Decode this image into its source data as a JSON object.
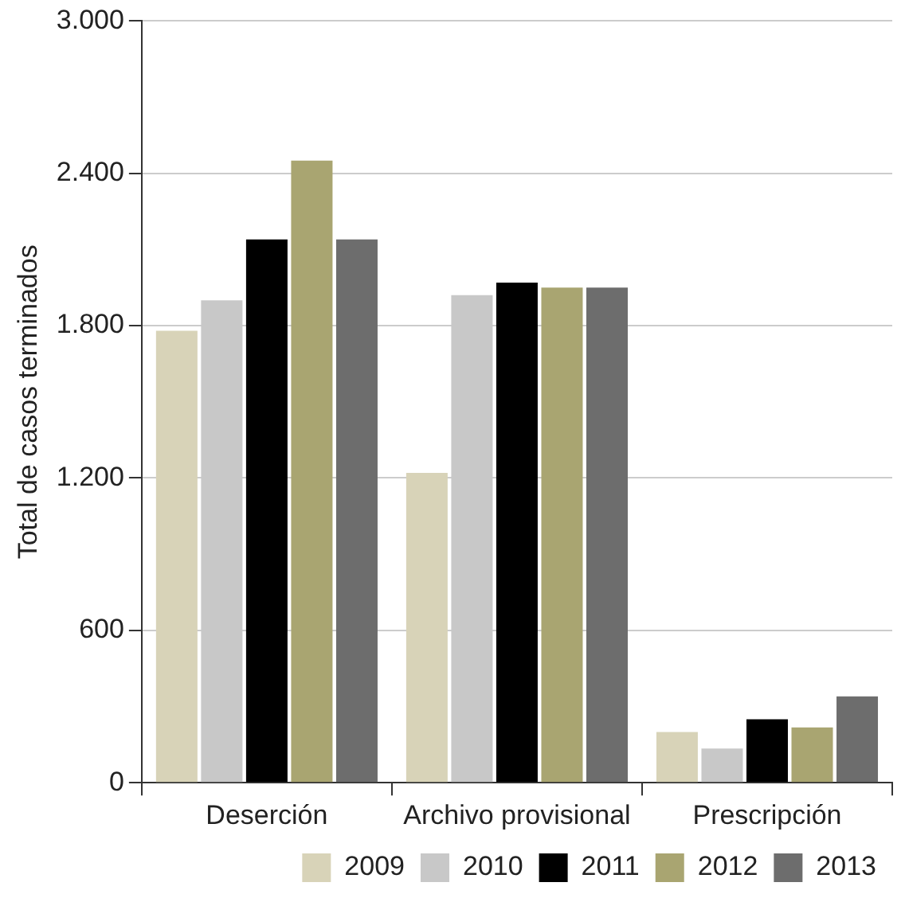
{
  "chart_data": {
    "type": "bar",
    "ylabel": "Total de casos terminados",
    "categories": [
      "Deserción",
      "Archivo provisional",
      "Prescripción"
    ],
    "series": [
      {
        "name": "2009",
        "color": "#d8d3b8",
        "values": [
          1780,
          1220,
          200
        ]
      },
      {
        "name": "2010",
        "color": "#c8c8c8",
        "values": [
          1900,
          1920,
          135
        ]
      },
      {
        "name": "2011",
        "color": "#000000",
        "values": [
          2140,
          1970,
          250
        ]
      },
      {
        "name": "2012",
        "color": "#a9a571",
        "values": [
          2450,
          1950,
          218
        ]
      },
      {
        "name": "2013",
        "color": "#6d6d6d",
        "values": [
          2140,
          1950,
          340
        ]
      }
    ],
    "ylim": [
      0,
      3000
    ],
    "yticks": [
      {
        "value": 0,
        "label": "0"
      },
      {
        "value": 600,
        "label": "600"
      },
      {
        "value": 1200,
        "label": "1.200"
      },
      {
        "value": 1800,
        "label": "1.800"
      },
      {
        "value": 2400,
        "label": "2.400"
      },
      {
        "value": 3000,
        "label": "3.000"
      }
    ],
    "grid": "y",
    "legend": "bottom right"
  }
}
